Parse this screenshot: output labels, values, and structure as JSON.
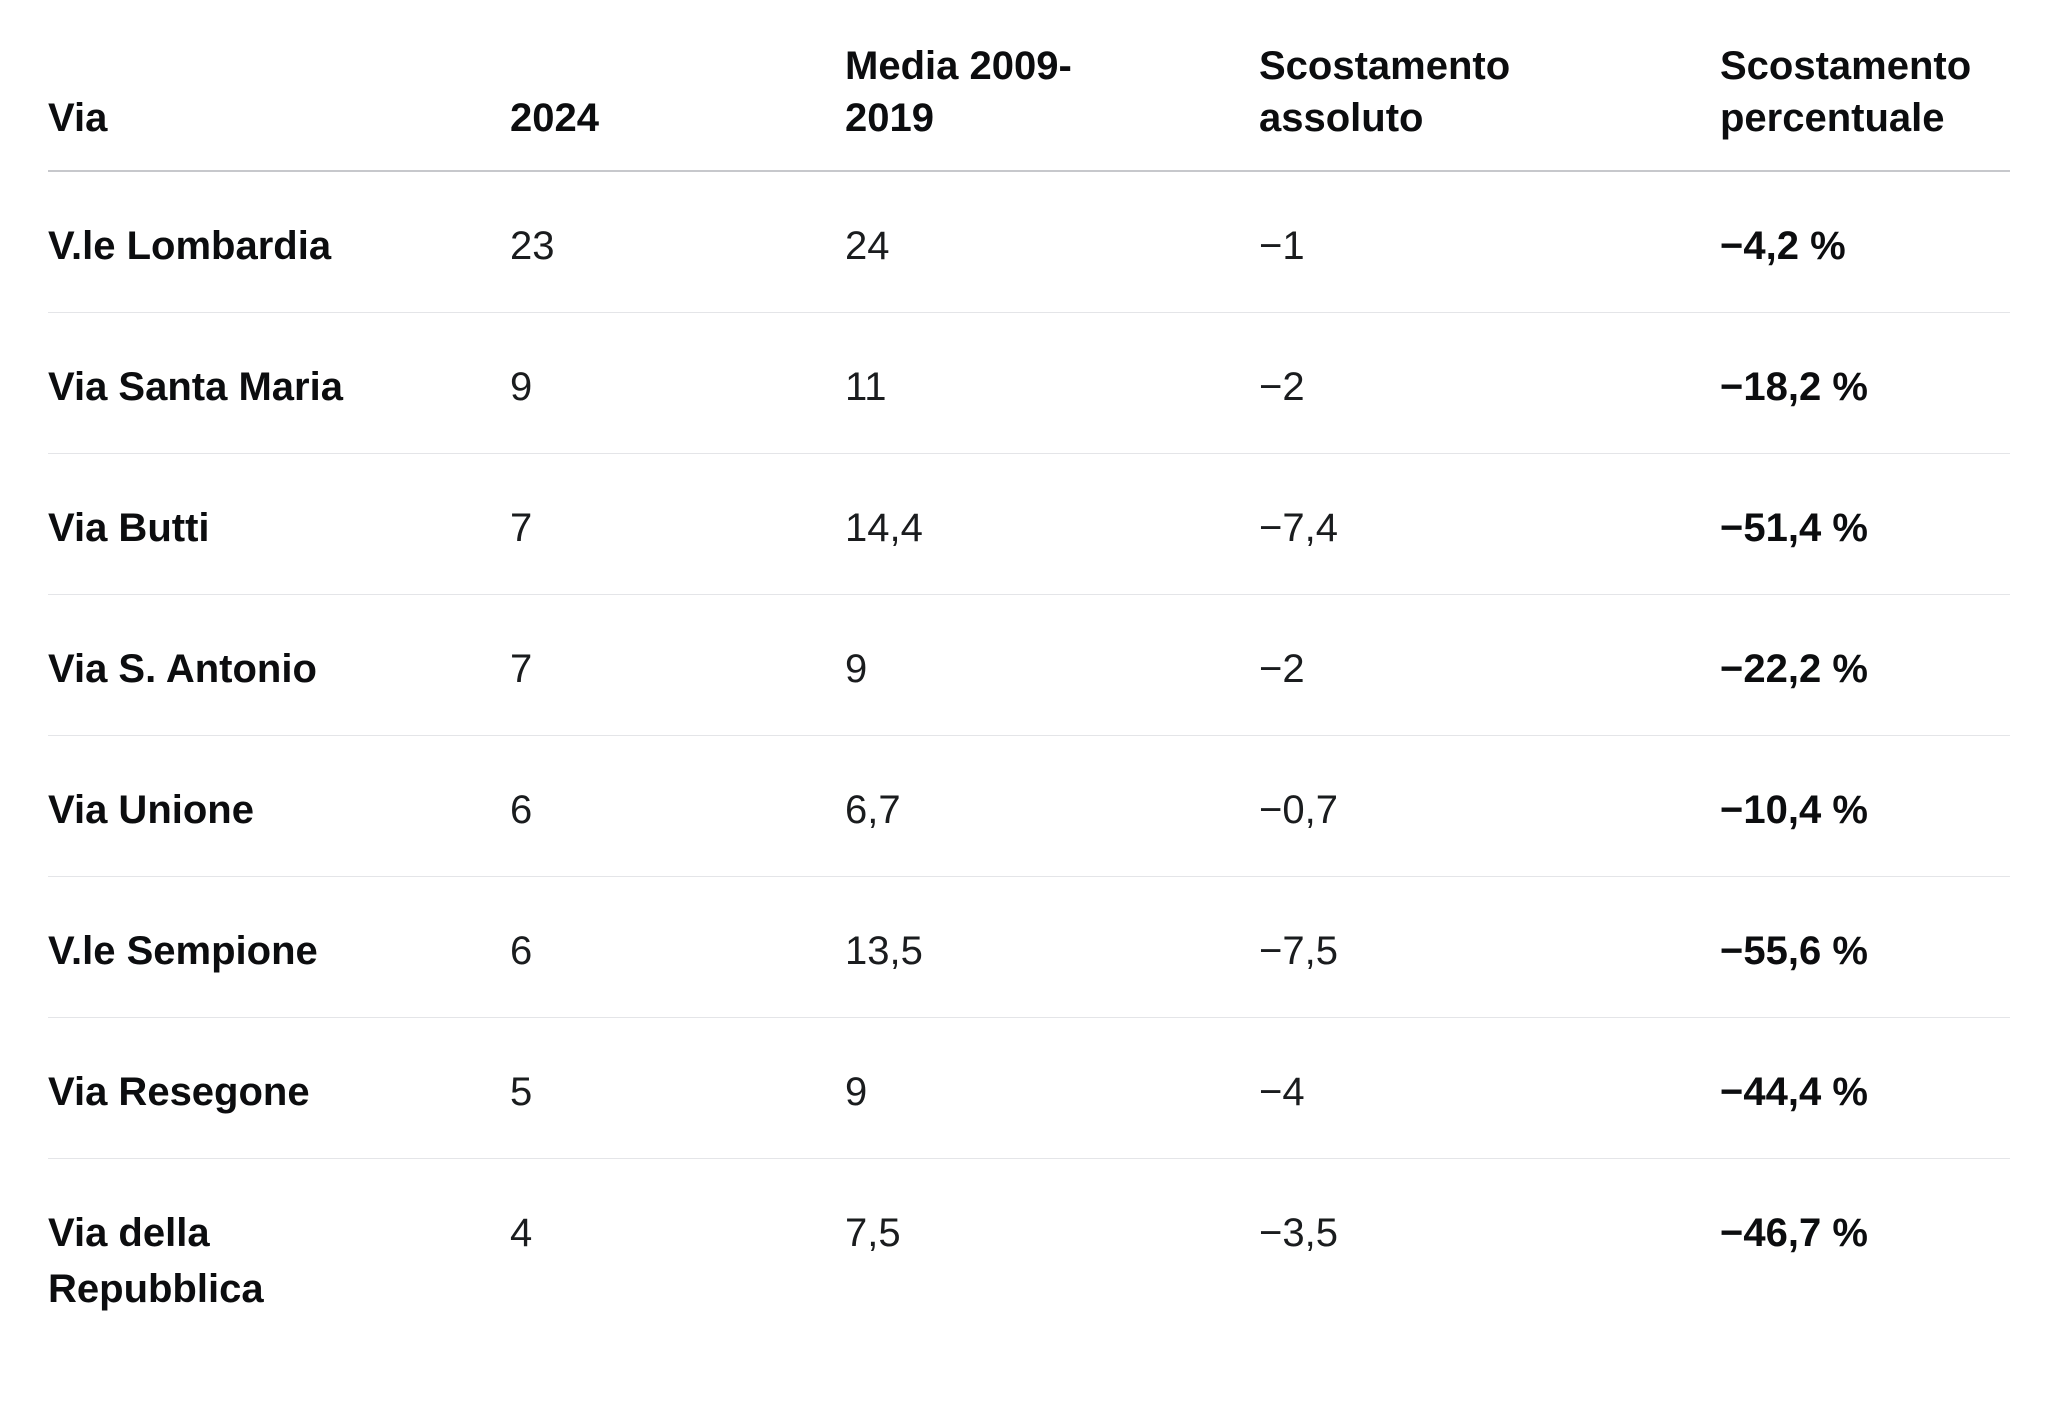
{
  "table": {
    "columns": [
      {
        "key": "via",
        "label": "Via"
      },
      {
        "key": "y2024",
        "label": "2024"
      },
      {
        "key": "media",
        "label": "Media 2009-2019"
      },
      {
        "key": "abs",
        "label": "Scostamento assoluto"
      },
      {
        "key": "pct",
        "label": "Scostamento percentuale"
      }
    ],
    "rows": [
      {
        "via": "V.le Lombardia",
        "y2024": "23",
        "media": "24",
        "abs": "−1",
        "pct": "−4,2 %"
      },
      {
        "via": "Via Santa Maria",
        "y2024": "9",
        "media": "11",
        "abs": "−2",
        "pct": "−18,2 %"
      },
      {
        "via": "Via Butti",
        "y2024": "7",
        "media": "14,4",
        "abs": "−7,4",
        "pct": "−51,4 %"
      },
      {
        "via": "Via S. Antonio",
        "y2024": "7",
        "media": "9",
        "abs": "−2",
        "pct": "−22,2 %"
      },
      {
        "via": "Via Unione",
        "y2024": "6",
        "media": "6,7",
        "abs": "−0,7",
        "pct": "−10,4 %"
      },
      {
        "via": "V.le Sempione",
        "y2024": "6",
        "media": "13,5",
        "abs": "−7,5",
        "pct": "−55,6 %"
      },
      {
        "via": "Via Resegone",
        "y2024": "5",
        "media": "9",
        "abs": "−4",
        "pct": "−44,4 %"
      },
      {
        "via": "Via della Repubblica",
        "y2024": "4",
        "media": "7,5",
        "abs": "−3,5",
        "pct": "−46,7 %"
      }
    ]
  },
  "chart_data": {
    "type": "table",
    "title": "",
    "columns": [
      "Via",
      "2024",
      "Media 2009-2019",
      "Scostamento assoluto",
      "Scostamento percentuale"
    ],
    "rows": [
      [
        "V.le Lombardia",
        23,
        24,
        -1,
        "−4,2 %"
      ],
      [
        "Via Santa Maria",
        9,
        11,
        -2,
        "−18,2 %"
      ],
      [
        "Via Butti",
        7,
        14.4,
        -7.4,
        "−51,4 %"
      ],
      [
        "Via S. Antonio",
        7,
        9,
        -2,
        "−22,2 %"
      ],
      [
        "Via Unione",
        6,
        6.7,
        -0.7,
        "−10,4 %"
      ],
      [
        "V.le Sempione",
        6,
        13.5,
        -7.5,
        "−55,6 %"
      ],
      [
        "Via Resegone",
        5,
        9,
        -4,
        "−44,4 %"
      ],
      [
        "Via della Repubblica",
        4,
        7.5,
        -3.5,
        "−46,7 %"
      ]
    ],
    "colors": {
      "text": "#121416",
      "header_rule": "#c7c8cc",
      "row_rule": "#e4e5e8",
      "background": "#ffffff"
    }
  }
}
